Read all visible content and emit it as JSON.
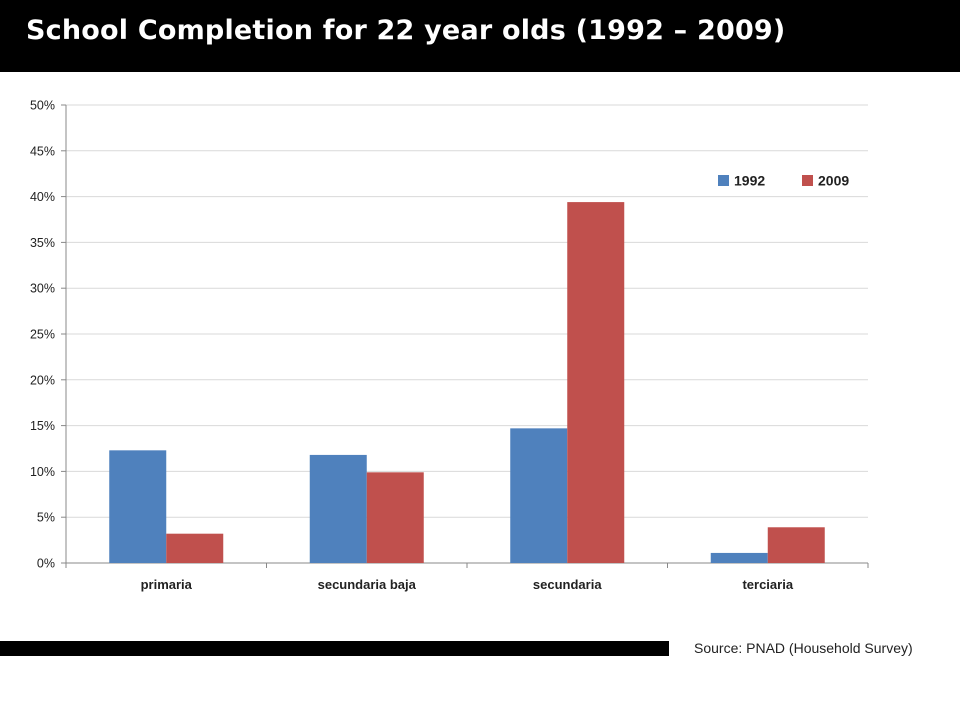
{
  "slide": {
    "title": "School Completion for 22 year olds (1992 – 2009)",
    "source": "Source: PNAD (Household Survey)"
  },
  "colors": {
    "series_1992": "#4F81BD",
    "series_2009": "#C0504D",
    "grid": "#d9d9d9",
    "axis": "#888888"
  },
  "chart_data": {
    "type": "bar",
    "categories": [
      "primaria",
      "secundaria baja",
      "secundaria",
      "terciaria"
    ],
    "series": [
      {
        "name": "1992",
        "values": [
          12.3,
          11.8,
          14.7,
          1.1
        ]
      },
      {
        "name": "2009",
        "values": [
          3.2,
          9.9,
          39.4,
          3.9
        ]
      }
    ],
    "ylim": [
      0,
      50
    ],
    "yticks": [
      "0%",
      "5%",
      "10%",
      "15%",
      "20%",
      "25%",
      "30%",
      "35%",
      "40%",
      "45%",
      "50%"
    ],
    "grid": true,
    "legend_position": "top-right"
  }
}
